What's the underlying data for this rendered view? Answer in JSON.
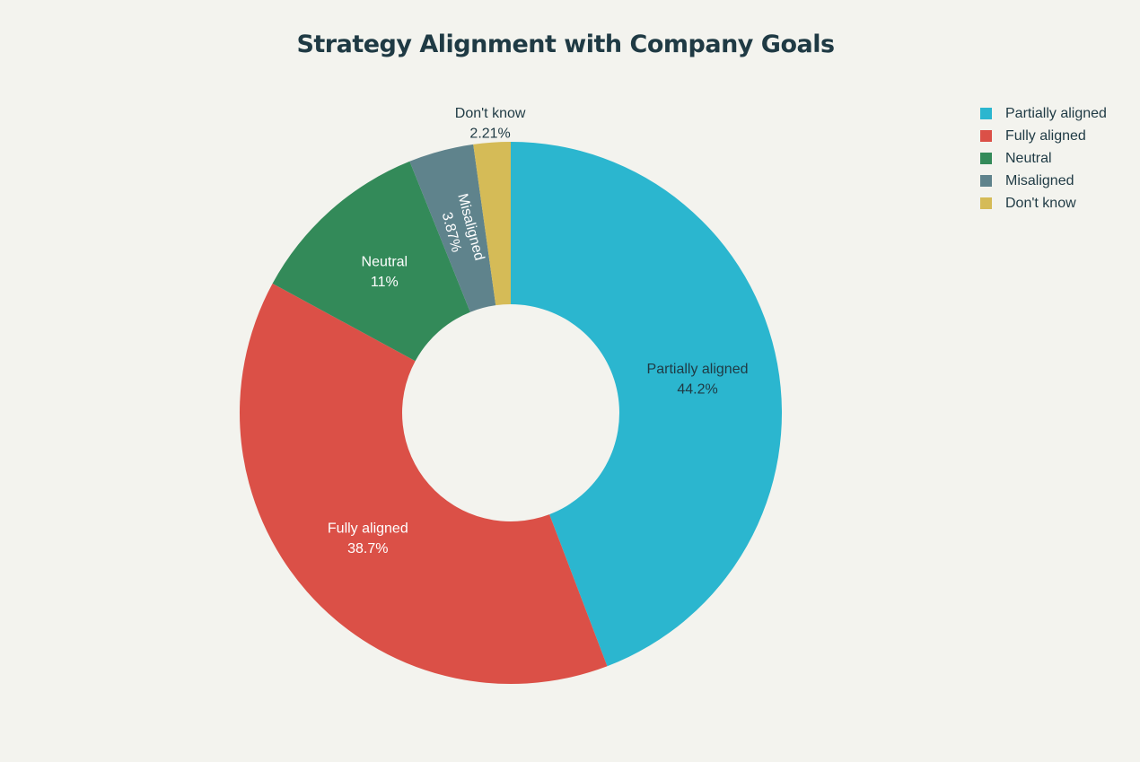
{
  "chart_data": {
    "type": "pie",
    "title": "Strategy Alignment with Company Goals",
    "donut": true,
    "categories": [
      "Partially aligned",
      "Fully aligned",
      "Neutral",
      "Misaligned",
      "Don't know"
    ],
    "values": [
      44.2,
      38.7,
      11,
      3.87,
      2.21
    ],
    "value_labels": [
      "44.2%",
      "38.7%",
      "11%",
      "3.87%",
      "2.21%"
    ],
    "colors": [
      "#2bb6cf",
      "#db5047",
      "#338a59",
      "#5f838c",
      "#d5bb57"
    ],
    "label_colors": [
      "#1f3a44",
      "#ffffff",
      "#ffffff",
      "#ffffff",
      "#1f3a44"
    ],
    "legend_position": "top-right"
  }
}
